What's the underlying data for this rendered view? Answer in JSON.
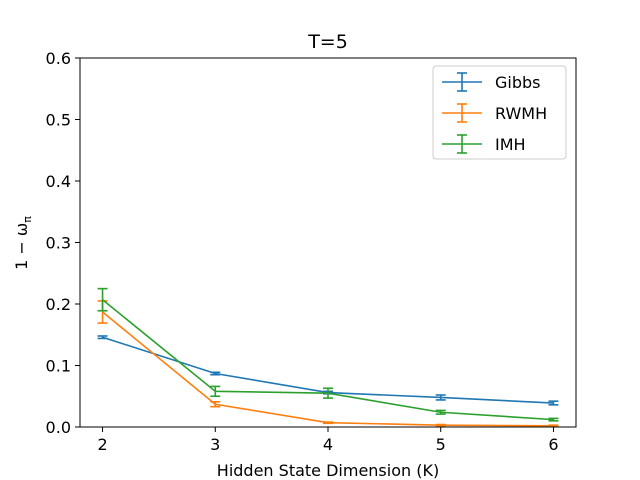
{
  "chart_data": {
    "type": "line",
    "title": "T=5",
    "xlabel": "Hidden State Dimension (K)",
    "ylabel": "1 − ω",
    "ylabel_subscript": "π",
    "x": [
      2,
      3,
      4,
      5,
      6
    ],
    "xticks": [
      "2",
      "3",
      "4",
      "5",
      "6"
    ],
    "xlim": [
      1.8,
      6.2
    ],
    "ylim": [
      0.0,
      0.6
    ],
    "yticks": [
      "0.0",
      "0.1",
      "0.2",
      "0.3",
      "0.4",
      "0.5",
      "0.6"
    ],
    "grid": false,
    "legend": {
      "placement": "top-right"
    },
    "series": [
      {
        "name": "Gibbs",
        "color": "#1f77b4",
        "values": [
          0.146,
          0.087,
          0.056,
          0.048,
          0.039
        ],
        "errors": [
          0.002,
          0.002,
          0.002,
          0.004,
          0.003
        ]
      },
      {
        "name": "RWMH",
        "color": "#ff7f0e",
        "values": [
          0.187,
          0.037,
          0.007,
          0.003,
          0.002
        ],
        "errors": [
          0.018,
          0.004,
          0.001,
          0.001,
          0.001
        ]
      },
      {
        "name": "IMH",
        "color": "#2ca02c",
        "values": [
          0.207,
          0.058,
          0.055,
          0.024,
          0.012
        ],
        "errors": [
          0.018,
          0.008,
          0.008,
          0.003,
          0.002
        ]
      }
    ]
  }
}
